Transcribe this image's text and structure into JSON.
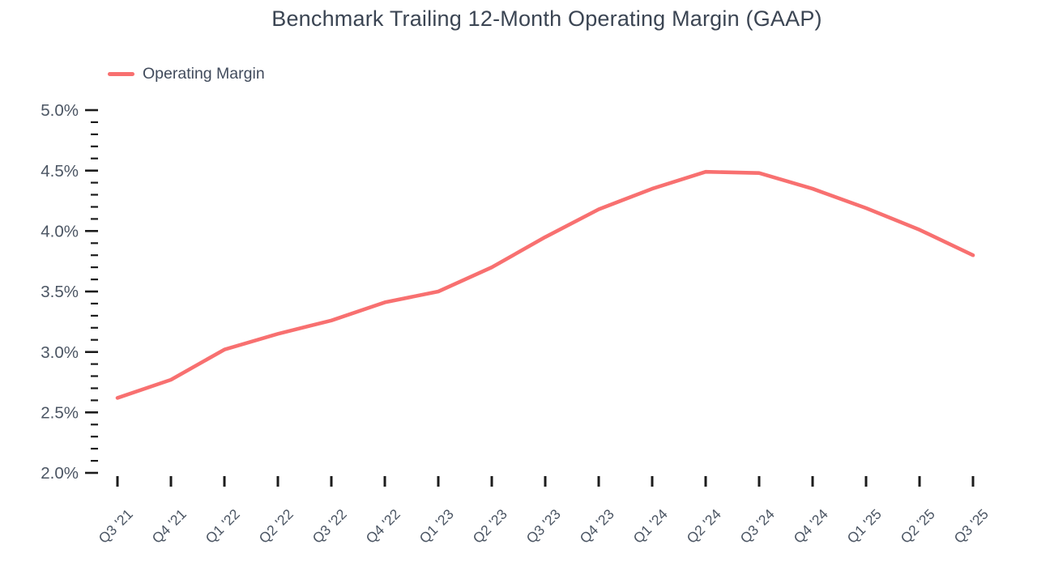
{
  "chart_data": {
    "type": "line",
    "title": "Benchmark Trailing 12-Month Operating Margin (GAAP)",
    "legend_position": "top-left",
    "categories": [
      "Q3 '21",
      "Q4 '21",
      "Q1 '22",
      "Q2 '22",
      "Q3 '22",
      "Q4 '22",
      "Q1 '23",
      "Q2 '23",
      "Q3 '23",
      "Q4 '23",
      "Q1 '24",
      "Q2 '24",
      "Q3 '24",
      "Q4 '24",
      "Q1 '25",
      "Q2 '25",
      "Q3 '25"
    ],
    "series": [
      {
        "name": "Operating Margin",
        "values": [
          2.62,
          2.77,
          3.02,
          3.15,
          3.26,
          3.41,
          3.5,
          3.7,
          3.95,
          4.18,
          4.35,
          4.49,
          4.48,
          4.35,
          4.19,
          4.01,
          3.8
        ]
      }
    ],
    "xlabel": "",
    "ylabel": "",
    "ylim": [
      2.0,
      5.0
    ],
    "ytick_major": 0.5,
    "ytick_minor": 0.1,
    "ytick_suffix": "%",
    "grid": false,
    "line_color": "#f87070",
    "label_color": "#4b5563",
    "tick_color": "#1c1c1c",
    "title_color": "#3b4553"
  }
}
